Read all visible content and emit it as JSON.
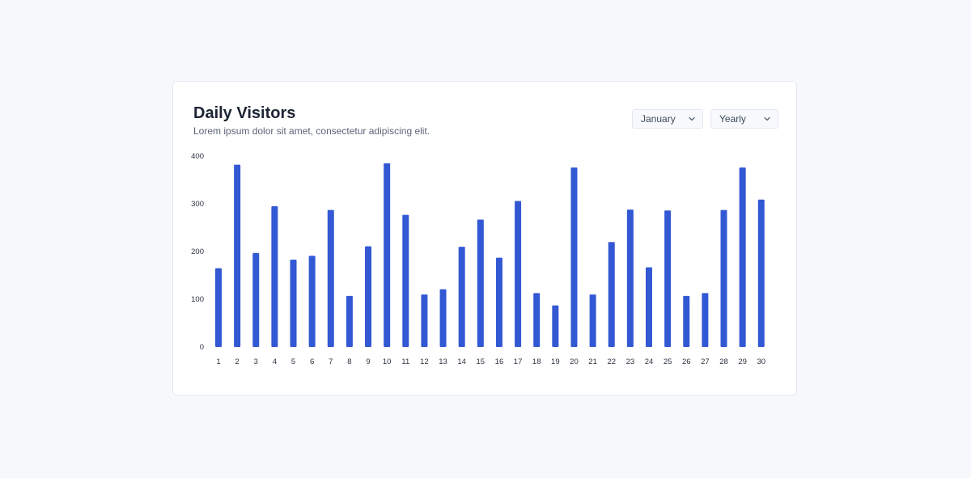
{
  "header": {
    "title": "Daily Visitors",
    "subtitle": "Lorem ipsum dolor sit amet, consectetur adipiscing elit."
  },
  "filters": {
    "month": "January",
    "period": "Yearly"
  },
  "colors": {
    "bar": "#3358d4",
    "background": "#f6f8fb",
    "card": "#ffffff"
  },
  "chart_data": {
    "type": "bar",
    "title": "Daily Visitors",
    "xlabel": "",
    "ylabel": "",
    "ylim": [
      0,
      400
    ],
    "yticks": [
      0,
      100,
      200,
      300,
      400
    ],
    "grid": false,
    "categories": [
      "1",
      "2",
      "3",
      "4",
      "5",
      "6",
      "7",
      "8",
      "9",
      "10",
      "11",
      "12",
      "13",
      "14",
      "15",
      "16",
      "17",
      "18",
      "19",
      "20",
      "21",
      "22",
      "23",
      "24",
      "25",
      "26",
      "27",
      "28",
      "29",
      "30"
    ],
    "values": [
      165,
      382,
      197,
      295,
      183,
      191,
      287,
      107,
      211,
      385,
      277,
      110,
      121,
      210,
      267,
      187,
      306,
      113,
      87,
      376,
      110,
      220,
      288,
      167,
      286,
      107,
      113,
      287,
      376,
      309
    ]
  }
}
